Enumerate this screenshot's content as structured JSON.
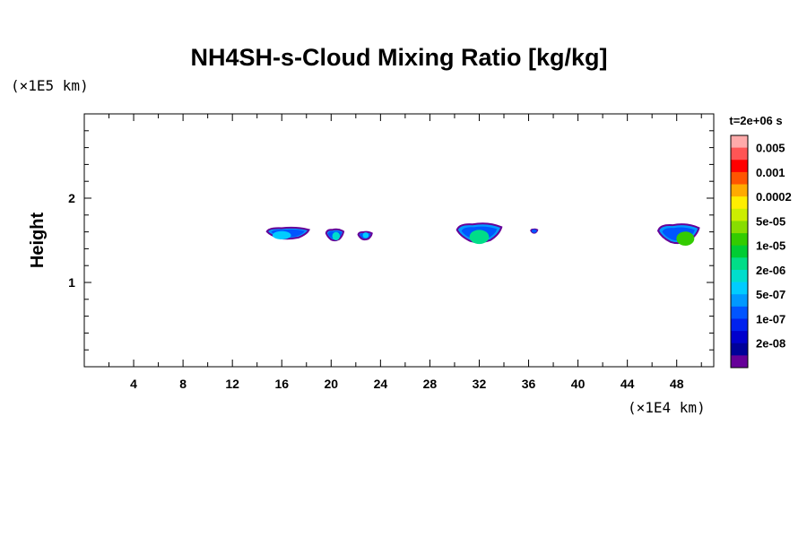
{
  "chart_data": {
    "type": "contour",
    "title": "NH4SH-s-Cloud Mixing Ratio [kg/kg]",
    "ylabel": "Height",
    "xunit": "(×1E4 km)",
    "yunit": "(×1E5 km)",
    "time_label": "t=2e+06 s",
    "xlim": [
      0,
      51
    ],
    "ylim": [
      0,
      3
    ],
    "x_ticks": [
      4,
      8,
      12,
      16,
      20,
      24,
      28,
      32,
      36,
      40,
      44,
      48
    ],
    "x_tick_labels": [
      "4",
      "8",
      "12",
      "16",
      "20",
      "24",
      "28",
      "32",
      "36",
      "40",
      "44",
      "48"
    ],
    "y_ticks": [
      1,
      2
    ],
    "y_tick_labels": [
      "1",
      "2"
    ],
    "colorbar": {
      "levels": [
        "0.005",
        "0.001",
        "0.0002",
        "5e-05",
        "1e-05",
        "2e-06",
        "5e-07",
        "1e-07",
        "2e-08"
      ],
      "colors": [
        "#ffaaaa",
        "#ff5555",
        "#ff0000",
        "#ff5500",
        "#ffaa00",
        "#ffee00",
        "#ccee00",
        "#88dd00",
        "#33cc00",
        "#00cc33",
        "#00dd88",
        "#00ddcc",
        "#00ccff",
        "#0099ff",
        "#0055ff",
        "#0022ee",
        "#0000cc",
        "#000099",
        "#660099"
      ]
    },
    "clouds": [
      {
        "x0": 14.8,
        "x1": 18.2,
        "y_top": 1.65,
        "y_bot": 1.52,
        "core_x": 16.0,
        "core_y": 1.56,
        "core_color": "#00ccff"
      },
      {
        "x0": 19.6,
        "x1": 21.0,
        "y_top": 1.63,
        "y_bot": 1.5,
        "core_x": 20.4,
        "core_y": 1.55,
        "core_color": "#00ddcc"
      },
      {
        "x0": 22.2,
        "x1": 23.3,
        "y_top": 1.6,
        "y_bot": 1.51,
        "core_x": 22.8,
        "core_y": 1.56,
        "core_color": "#00ccff"
      },
      {
        "x0": 30.2,
        "x1": 33.8,
        "y_top": 1.7,
        "y_bot": 1.48,
        "core_x": 32.0,
        "core_y": 1.54,
        "core_color": "#00dd88"
      },
      {
        "x0": 36.2,
        "x1": 36.7,
        "y_top": 1.63,
        "y_bot": 1.59,
        "core_x": 36.45,
        "core_y": 1.61,
        "core_color": "#0055ff"
      },
      {
        "x0": 46.5,
        "x1": 49.8,
        "y_top": 1.69,
        "y_bot": 1.47,
        "core_x": 48.7,
        "core_y": 1.52,
        "core_color": "#33cc00"
      }
    ]
  }
}
